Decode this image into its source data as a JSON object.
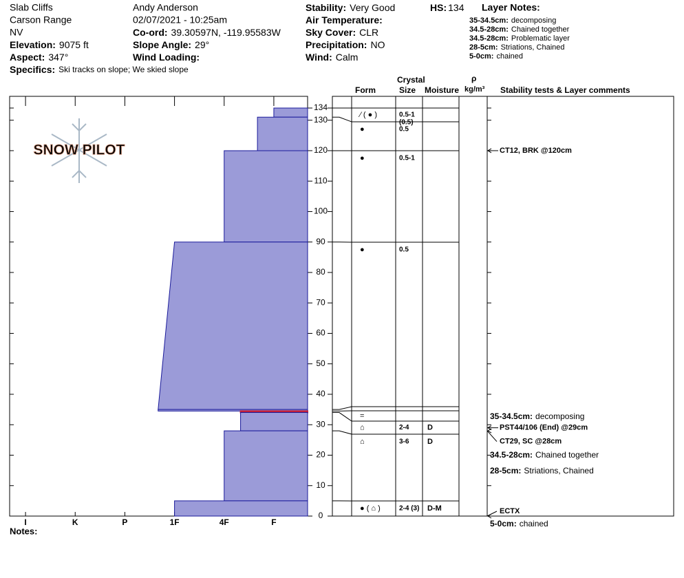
{
  "header": {
    "location": [
      "Slab Cliffs",
      "Carson Range",
      "NV"
    ],
    "observer": "Andy Anderson",
    "datetime": "02/07/2021 - 10:25am",
    "fields_left": [
      {
        "label": "Elevation:",
        "value": "9075 ft"
      },
      {
        "label": "Aspect:",
        "value": "347°"
      }
    ],
    "fields_middle": [
      {
        "label": "Co-ord:",
        "value": "39.30597N, -119.95583W"
      },
      {
        "label": "Slope Angle:",
        "value": "29°"
      },
      {
        "label": "Wind Loading:"
      }
    ],
    "fields_right": [
      {
        "label": "Stability:",
        "value": "Very Good"
      },
      {
        "label": "Air Temperature:"
      },
      {
        "label": "Sky Cover:",
        "value": "CLR"
      },
      {
        "label": "Precipitation:",
        "value": "NO"
      },
      {
        "label": "Wind:",
        "value": "Calm"
      }
    ],
    "hs": {
      "label": "HS:",
      "value": "134"
    },
    "layer_notes_title": "Layer Notes:",
    "layer_notes": [
      {
        "range": "35-34.5cm:",
        "text": "decomposing"
      },
      {
        "range": "34.5-28cm:",
        "text": "Chained together"
      },
      {
        "range": "34.5-28cm:",
        "text": "Problematic layer"
      },
      {
        "range": "28-5cm:",
        "text": "Striations, Chained"
      },
      {
        "range": "5-0cm:",
        "text": "chained"
      }
    ],
    "specifics": {
      "label": "Specifics:",
      "value": "Ski tracks on slope; We skied slope"
    }
  },
  "logo": "SNOW PILOT",
  "columns": {
    "crystal": "Crystal",
    "form": "Form",
    "size": "Size",
    "moisture": "Moisture",
    "density_symbol": "ρ",
    "density_unit": "kg/m³",
    "comments": "Stability tests & Layer comments"
  },
  "notes_label": "Notes:",
  "profile": {
    "depth_lim": [
      0,
      134
    ],
    "depth_ticks": [
      0,
      10,
      20,
      30,
      40,
      50,
      60,
      70,
      80,
      90,
      100,
      110,
      120,
      130,
      134
    ],
    "hardness_lim": [
      0.32,
      6.32
    ],
    "hardness_ticks": [
      {
        "value": 6,
        "label": "I"
      },
      {
        "value": 5,
        "label": "K"
      },
      {
        "value": 4,
        "label": "P"
      },
      {
        "value": 3,
        "label": "1F"
      },
      {
        "value": 2,
        "label": "4F"
      },
      {
        "value": 1,
        "label": "F"
      }
    ],
    "layers": [
      {
        "top": 134,
        "bottom": 131,
        "hardness_top": 1,
        "hardness_bottom": 1,
        "form": "⁄ ( ● )",
        "size": "0.5-1",
        "size_secondary": "(0.5)"
      },
      {
        "top": 131,
        "bottom": 120,
        "hardness_top": 1.33,
        "hardness_bottom": 1.33,
        "form": "●",
        "size": "0.5"
      },
      {
        "top": 120,
        "bottom": 90,
        "hardness_top": 2,
        "hardness_bottom": 2,
        "form": "●",
        "size": "0.5-1"
      },
      {
        "top": 90,
        "bottom": 35,
        "hardness_top": 3,
        "hardness_bottom": 3.33,
        "form": "●",
        "size": "0.5"
      },
      {
        "top": 35,
        "bottom": 34.5,
        "hardness_top": 3.33,
        "hardness_bottom": 3.33
      },
      {
        "top": 34.5,
        "bottom": 34,
        "hardness_top": 1.67,
        "hardness_bottom": 1.67,
        "color": "#c0203c",
        "form": "="
      },
      {
        "top": 34,
        "bottom": 28,
        "hardness_top": 1.67,
        "hardness_bottom": 1.67,
        "form": "⌂",
        "size": "2-4",
        "moisture": "D"
      },
      {
        "top": 28,
        "bottom": 5,
        "hardness_top": 2,
        "hardness_bottom": 2,
        "form": "⌂",
        "size": "3-6",
        "moisture": "D"
      },
      {
        "top": 5,
        "bottom": 0,
        "hardness_top": 3,
        "hardness_bottom": 3,
        "form": "● ( ⌂ )",
        "size": "2-4 (3)",
        "moisture": "D-M"
      }
    ],
    "tests": [
      {
        "text": "CT12, BRK @120cm",
        "depth": 120
      },
      {
        "text": "PST44/106 (End) @29cm",
        "depth": 29
      },
      {
        "text": "CT29, SC @28cm",
        "depth": 28
      },
      {
        "text": "ECTX",
        "depth": 0
      }
    ]
  }
}
